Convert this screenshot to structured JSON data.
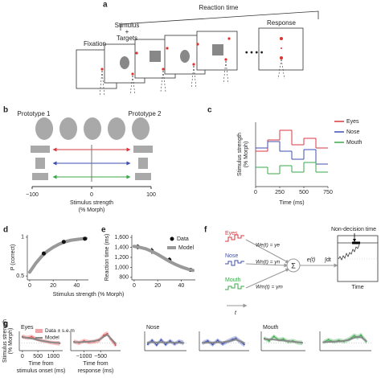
{
  "panels": {
    "a": {
      "label": "a",
      "reaction_time": "Reaction time",
      "fixation": "Fixation",
      "stimulus": [
        "Stimulus",
        "+",
        "Targets"
      ],
      "response": "Response"
    },
    "b": {
      "label": "b",
      "prototypes": [
        "Prototype 1",
        "Prototype 2"
      ],
      "ticks": [
        "−100",
        "0",
        "100"
      ],
      "xlabel": [
        "Stimulus strength",
        "(% Morph)"
      ]
    },
    "c": {
      "label": "c"
    },
    "d": {
      "label": "d"
    },
    "e": {
      "label": "e"
    },
    "f": {
      "label": "f",
      "inputs": [
        {
          "name": "Eyes",
          "weight": "We(t) = γe"
        },
        {
          "name": "Nose",
          "weight": "Wn(t) = γn"
        },
        {
          "name": "Mouth",
          "weight": "Wm(t) = γm"
        }
      ],
      "sum": "Σ",
      "evidence": "e(t)",
      "integral": "∫dt",
      "non_decision": "Non-decision time",
      "time": "Time",
      "t": "t"
    },
    "g": {
      "label": "g",
      "ylabel": [
        "Stimulus strength",
        "(% Morph)"
      ]
    }
  },
  "chart_data": [
    {
      "type": "line",
      "step": true,
      "xlabel": "Time (ms)",
      "ylabel": [
        "Stimulus strength",
        "(% Morph)"
      ],
      "x": [
        0,
        125,
        250,
        375,
        500,
        625
      ],
      "xlim": [
        0,
        750
      ],
      "xticks": [
        0,
        250,
        500,
        750
      ],
      "ylim": [
        -1,
        1
      ],
      "legend": "upper right",
      "series": [
        {
          "name": "Eyes",
          "color": "#d9383e",
          "values": [
            0.1,
            0.45,
            0.75,
            0.3,
            0.5,
            0.2
          ]
        },
        {
          "name": "Nose",
          "color": "#3d4fb0",
          "values": [
            0.2,
            0.4,
            0.1,
            -0.15,
            0.15,
            -0.3
          ]
        },
        {
          "name": "Mouth",
          "color": "#3aa84a",
          "values": [
            -0.4,
            -0.6,
            -0.35,
            -0.55,
            -0.25,
            -0.55
          ]
        }
      ]
    },
    {
      "type": "line",
      "xlabel": "Stimulus strength (% Morph)",
      "ylabel": "P (correct)",
      "xlim": [
        -2,
        50
      ],
      "xticks": [
        0,
        20,
        40
      ],
      "ylim": [
        0.45,
        1.03
      ],
      "yticks": [
        0.5,
        1
      ],
      "x": [
        0,
        5,
        10,
        15,
        20,
        25,
        30,
        35,
        40,
        45,
        48
      ],
      "series": [
        {
          "name": "Model",
          "color": "#999999",
          "width": 4,
          "values": [
            0.55,
            0.66,
            0.75,
            0.82,
            0.87,
            0.91,
            0.94,
            0.96,
            0.97,
            0.98,
            0.985
          ]
        },
        {
          "name": "Data",
          "mode": "markers",
          "color": "#111111",
          "x": [
            12,
            29,
            47
          ],
          "values": [
            0.79,
            0.94,
            0.98
          ]
        }
      ]
    },
    {
      "type": "line",
      "ylabel": "Reaction time (ms)",
      "xlim": [
        -2,
        52
      ],
      "xticks": [
        0,
        20,
        40
      ],
      "ylim": [
        750,
        1650
      ],
      "yticks": [
        800,
        {
          "value": 1000,
          "label": "1,000"
        },
        {
          "value": 1200,
          "label": "1,200"
        },
        {
          "value": 1400,
          "label": "1,400"
        },
        {
          "value": 1600,
          "label": "1,600"
        }
      ],
      "legend": "upper right",
      "x": [
        0,
        5,
        10,
        15,
        20,
        25,
        30,
        35,
        40,
        45,
        50
      ],
      "series": [
        {
          "name": "Data",
          "mode": "markers",
          "color": "#111111",
          "x": [
            3,
            15,
            30,
            48
          ],
          "values": [
            1410,
            1330,
            1150,
            950
          ],
          "errors": [
            50,
            60,
            50,
            30
          ]
        },
        {
          "name": "Model",
          "color": "#999999",
          "width": 4,
          "values": [
            1420,
            1400,
            1370,
            1320,
            1260,
            1190,
            1120,
            1060,
            1010,
            970,
            940
          ]
        }
      ]
    },
    {
      "type": "line",
      "title": "Eyes",
      "legend": "upper left",
      "xlim": [
        -100,
        1300
      ],
      "xticks": [
        0,
        500,
        1000
      ],
      "ylim": [
        -30,
        45
      ],
      "xlabel": [
        "Time from",
        "stimulus onset (ms)"
      ],
      "x": [
        0,
        150,
        300,
        450,
        600,
        750,
        900,
        1050,
        1200
      ],
      "series": [
        {
          "name": "Data ± s.e.m",
          "mode": "band",
          "color": "#e0484d",
          "values": [
            25,
            20,
            24,
            15,
            10,
            6,
            2,
            0,
            -2
          ],
          "errors": [
            8,
            8,
            8,
            7,
            7,
            7,
            7,
            8,
            9
          ]
        },
        {
          "name": "Model",
          "color": "#888888",
          "width": 2,
          "values": [
            22,
            20,
            17,
            13,
            9,
            6,
            3,
            1,
            0
          ]
        }
      ]
    },
    {
      "type": "line",
      "xlim": [
        -1400,
        100
      ],
      "xticks": [
        {
          "value": -1000,
          "label": "−1000"
        },
        {
          "value": -500,
          "label": "−500"
        }
      ],
      "ylim": [
        -30,
        45
      ],
      "xlabel": [
        "Time from",
        "response (ms)"
      ],
      "x": [
        -1300,
        -1150,
        -1000,
        -850,
        -700,
        -550,
        -400,
        -300,
        -200,
        -50
      ],
      "series": [
        {
          "mode": "band",
          "color": "#e0484d",
          "values": [
            5,
            0,
            8,
            3,
            5,
            10,
            30,
            36,
            15,
            -8
          ],
          "errors": [
            8,
            8,
            8,
            8,
            8,
            9,
            9,
            9,
            9,
            10
          ]
        },
        {
          "color": "#888888",
          "width": 2,
          "values": [
            3,
            3,
            4,
            5,
            7,
            12,
            25,
            32,
            18,
            -2
          ]
        }
      ]
    },
    {
      "type": "line",
      "title": "Nose",
      "xlim": [
        -100,
        1300
      ],
      "ylim": [
        -30,
        45
      ],
      "x": [
        0,
        150,
        300,
        450,
        600,
        750,
        900,
        1050,
        1200
      ],
      "series": [
        {
          "mode": "band",
          "color": "#3d4fb0",
          "values": [
            -5,
            10,
            -8,
            12,
            -6,
            8,
            -4,
            6,
            0
          ],
          "errors": [
            8,
            8,
            8,
            8,
            8,
            8,
            8,
            8,
            9
          ]
        },
        {
          "color": "#888888",
          "width": 2,
          "values": [
            2,
            3,
            2,
            3,
            2,
            2,
            1,
            1,
            0
          ]
        }
      ]
    },
    {
      "type": "line",
      "xlim": [
        -1400,
        100
      ],
      "ylim": [
        -30,
        45
      ],
      "x": [
        -1300,
        -1150,
        -1000,
        -850,
        -700,
        -550,
        -400,
        -300,
        -200,
        -50
      ],
      "series": [
        {
          "mode": "band",
          "color": "#3d4fb0",
          "values": [
            0,
            8,
            -6,
            10,
            -4,
            6,
            14,
            18,
            8,
            -6
          ],
          "errors": [
            8,
            8,
            8,
            8,
            8,
            8,
            9,
            9,
            9,
            10
          ]
        },
        {
          "color": "#888888",
          "width": 2,
          "values": [
            1,
            1,
            2,
            2,
            3,
            5,
            10,
            14,
            8,
            0
          ]
        }
      ]
    },
    {
      "type": "line",
      "title": "Mouth",
      "xlim": [
        -100,
        1300
      ],
      "ylim": [
        -30,
        45
      ],
      "x": [
        0,
        150,
        300,
        450,
        600,
        750,
        900,
        1050,
        1200
      ],
      "series": [
        {
          "mode": "band",
          "color": "#3aa84a",
          "values": [
            18,
            8,
            25,
            12,
            15,
            5,
            8,
            2,
            0
          ],
          "errors": [
            8,
            8,
            8,
            8,
            8,
            8,
            8,
            8,
            9
          ]
        },
        {
          "color": "#888888",
          "width": 2,
          "values": [
            15,
            14,
            13,
            11,
            9,
            7,
            5,
            3,
            1
          ]
        }
      ]
    },
    {
      "type": "line",
      "xlim": [
        -1400,
        100
      ],
      "ylim": [
        -30,
        45
      ],
      "x": [
        -1300,
        -1150,
        -1000,
        -850,
        -700,
        -550,
        -400,
        -300,
        -200,
        -50
      ],
      "series": [
        {
          "mode": "band",
          "color": "#3aa84a",
          "values": [
            3,
            12,
            5,
            10,
            6,
            14,
            28,
            22,
            30,
            5
          ],
          "errors": [
            8,
            8,
            8,
            8,
            8,
            9,
            9,
            9,
            9,
            10
          ]
        },
        {
          "color": "#888888",
          "width": 2,
          "values": [
            3,
            4,
            5,
            6,
            8,
            12,
            20,
            24,
            22,
            8
          ]
        }
      ]
    }
  ]
}
